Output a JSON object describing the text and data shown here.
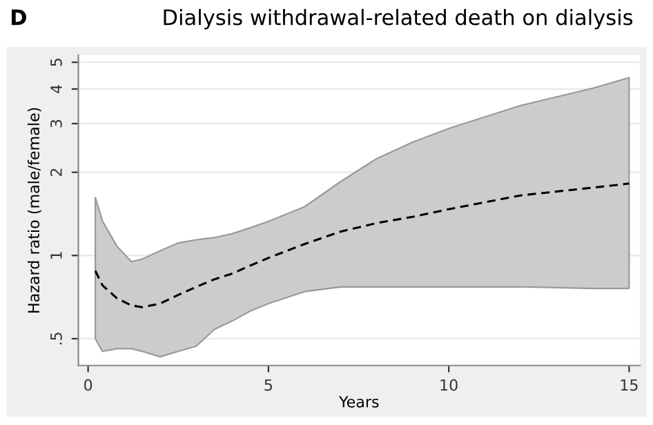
{
  "chart_data": {
    "type": "line",
    "title": "Dialysis withdrawal-related death on dialysis",
    "annotations": [
      "D"
    ],
    "xlabel": "Years",
    "ylabel": "Hazard ratio (male/female)",
    "log": "y",
    "grid": "y",
    "line_style": "dashed",
    "marker": "none",
    "xlim": [
      -0.27,
      15.3
    ],
    "xticks": [
      0,
      5,
      10,
      15
    ],
    "ylim": [
      0.4,
      5.3
    ],
    "yticks": [
      {
        "value": 0.5,
        "label": ".5"
      },
      1,
      2,
      3,
      4,
      5
    ],
    "series": [
      {
        "color": "#000000",
        "x": [
          0.2,
          0.4,
          0.8,
          1.2,
          1.5,
          2,
          2.5,
          3,
          3.5,
          4,
          4.5,
          5,
          6,
          7,
          8,
          9,
          10,
          12,
          14,
          15
        ],
        "values": [
          0.88,
          0.78,
          0.7,
          0.66,
          0.65,
          0.67,
          0.72,
          0.77,
          0.82,
          0.86,
          0.92,
          0.98,
          1.1,
          1.22,
          1.31,
          1.38,
          1.47,
          1.65,
          1.76,
          1.82
        ],
        "lower": [
          0.5,
          0.45,
          0.46,
          0.46,
          0.45,
          0.43,
          0.45,
          0.47,
          0.54,
          0.58,
          0.63,
          0.67,
          0.74,
          0.77,
          0.77,
          0.77,
          0.77,
          0.77,
          0.76,
          0.76
        ],
        "upper": [
          1.62,
          1.33,
          1.08,
          0.95,
          0.97,
          1.04,
          1.11,
          1.14,
          1.16,
          1.2,
          1.26,
          1.33,
          1.5,
          1.85,
          2.24,
          2.57,
          2.88,
          3.49,
          4.03,
          4.4
        ]
      }
    ]
  }
}
